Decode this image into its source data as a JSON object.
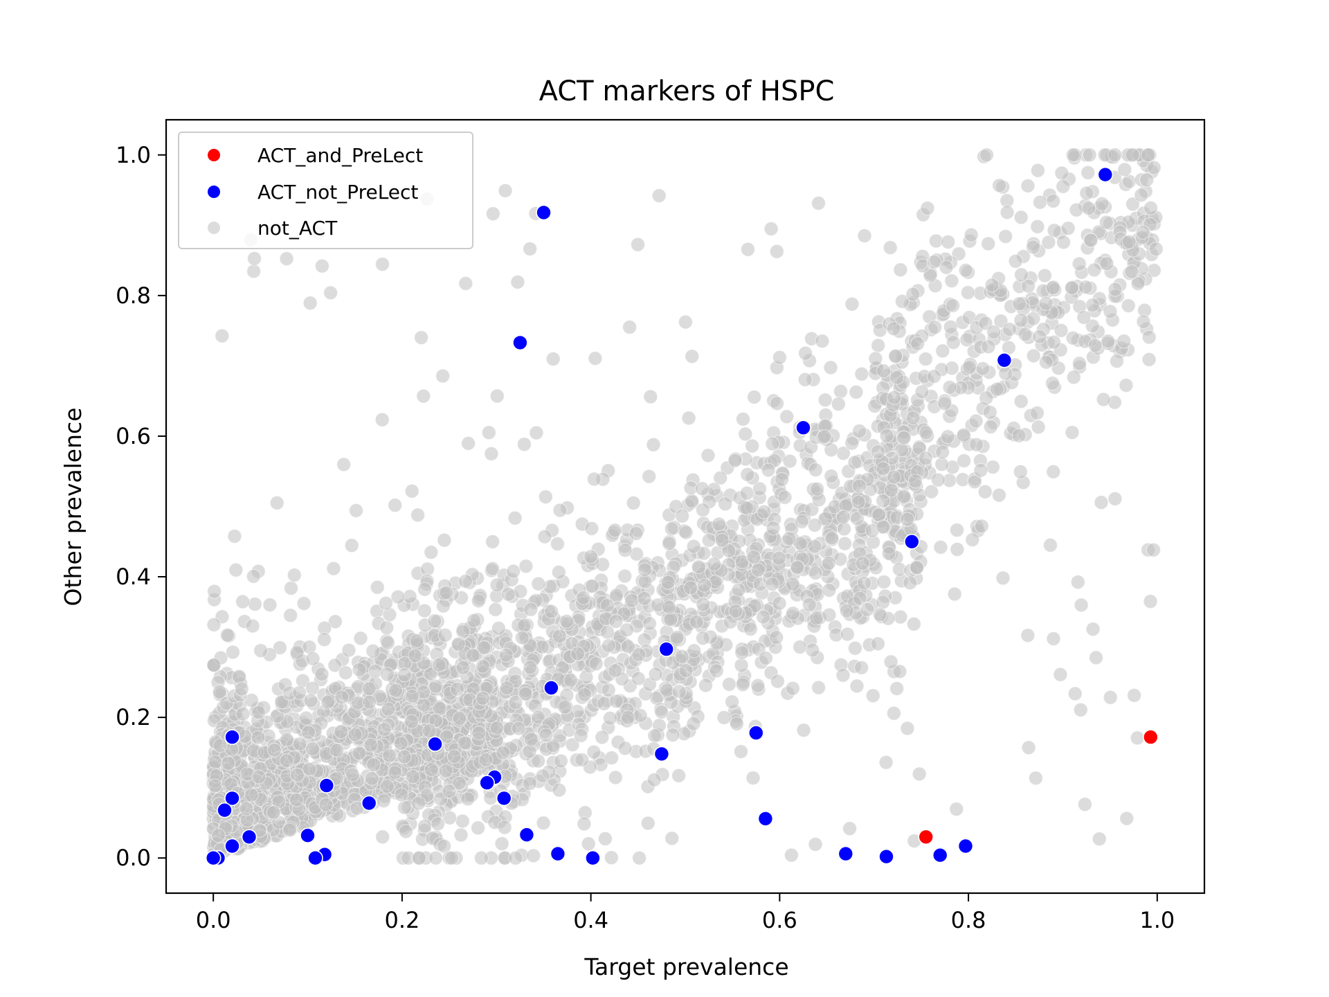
{
  "chart_data": {
    "type": "scatter",
    "title": "ACT markers of HSPC",
    "xlabel": "Target prevalence",
    "ylabel": "Other prevalence",
    "xlim": [
      -0.05,
      1.05
    ],
    "ylim": [
      -0.05,
      1.05
    ],
    "x_ticks": [
      0.0,
      0.2,
      0.4,
      0.6,
      0.8,
      1.0
    ],
    "y_ticks": [
      0.0,
      0.2,
      0.4,
      0.6,
      0.8,
      1.0
    ],
    "x_tick_labels": [
      "0.0",
      "0.2",
      "0.4",
      "0.6",
      "0.8",
      "1.0"
    ],
    "y_tick_labels": [
      "0.0",
      "0.2",
      "0.4",
      "0.6",
      "0.8",
      "1.0"
    ],
    "grid": false,
    "legend_position": "top-left",
    "series": [
      {
        "name": "ACT_and_PreLect",
        "color": "#ff0000",
        "points": [
          [
            0.755,
            0.03
          ],
          [
            0.993,
            0.172
          ]
        ]
      },
      {
        "name": "ACT_not_PreLect",
        "color": "#0000ff",
        "points": [
          [
            0.35,
            0.918
          ],
          [
            0.945,
            0.972
          ],
          [
            0.325,
            0.733
          ],
          [
            0.838,
            0.708
          ],
          [
            0.625,
            0.612
          ],
          [
            0.74,
            0.45
          ],
          [
            0.48,
            0.297
          ],
          [
            0.358,
            0.242
          ],
          [
            0.02,
            0.172
          ],
          [
            0.235,
            0.162
          ],
          [
            0.575,
            0.178
          ],
          [
            0.475,
            0.148
          ],
          [
            0.12,
            0.103
          ],
          [
            0.298,
            0.115
          ],
          [
            0.29,
            0.107
          ],
          [
            0.308,
            0.085
          ],
          [
            0.165,
            0.078
          ],
          [
            0.02,
            0.085
          ],
          [
            0.012,
            0.068
          ],
          [
            0.038,
            0.03
          ],
          [
            0.1,
            0.032
          ],
          [
            0.02,
            0.017
          ],
          [
            0.118,
            0.005
          ],
          [
            0.108,
            0.0
          ],
          [
            0.005,
            0.0
          ],
          [
            0.0,
            0.0
          ],
          [
            0.332,
            0.033
          ],
          [
            0.365,
            0.006
          ],
          [
            0.402,
            0.0
          ],
          [
            0.585,
            0.056
          ],
          [
            0.67,
            0.006
          ],
          [
            0.713,
            0.002
          ],
          [
            0.77,
            0.004
          ],
          [
            0.797,
            0.017
          ]
        ]
      },
      {
        "name": "not_ACT",
        "color": "#c0c0c0",
        "opacity": 0.55,
        "count": 3200
      }
    ]
  }
}
